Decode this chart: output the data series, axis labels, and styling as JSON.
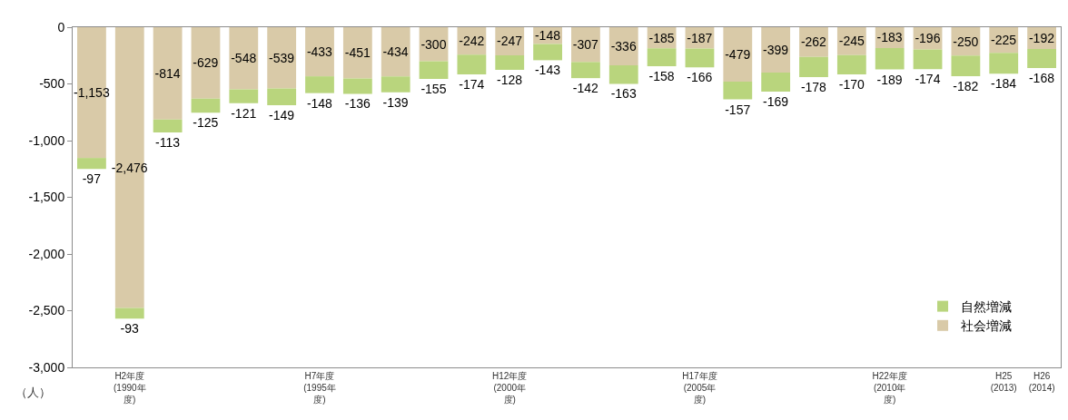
{
  "chart_data": {
    "type": "bar",
    "stacked": true,
    "categories": [
      null,
      "H2年度 (1990年度)",
      null,
      null,
      null,
      null,
      "H7年度 (1995年度)",
      null,
      null,
      null,
      null,
      "H12年度 (2000年度)",
      null,
      null,
      null,
      null,
      "H17年度 (2005年度)",
      null,
      null,
      null,
      null,
      "H22年度 (2010年度)",
      null,
      null,
      "H25 (2013)",
      "H26 (2014)"
    ],
    "series": [
      {
        "name": "社会増減",
        "color": "#d9caa8",
        "values": [
          -1153,
          -2476,
          -814,
          -629,
          -548,
          -539,
          -433,
          -451,
          -434,
          -300,
          -242,
          -247,
          -148,
          -307,
          -336,
          -185,
          -187,
          -479,
          -399,
          -262,
          -245,
          -183,
          -196,
          -250,
          -225,
          -192
        ],
        "value_labels": [
          "-1,153",
          "-2,476",
          "-814",
          "-629",
          "-548",
          "-539",
          "-433",
          "-451",
          "-434",
          "-300",
          "-242",
          "-247",
          "-148",
          "-307",
          "-336",
          "-185",
          "-187",
          "-479",
          "-399",
          "-262",
          "-245",
          "-183",
          "-196",
          "-250",
          "-225",
          "-192"
        ]
      },
      {
        "name": "自然増減",
        "color": "#b9d57d",
        "values": [
          -97,
          -93,
          -113,
          -125,
          -121,
          -149,
          -148,
          -136,
          -139,
          -155,
          -174,
          -128,
          -143,
          -142,
          -163,
          -158,
          -166,
          -157,
          -169,
          -178,
          -170,
          -189,
          -174,
          -182,
          -184,
          -168
        ],
        "value_labels": [
          "-97",
          "-93",
          "-113",
          "-125",
          "-121",
          "-149",
          "-148",
          "-136",
          "-139",
          "-155",
          "-174",
          "-128",
          "-143",
          "-142",
          "-163",
          "-158",
          "-166",
          "-157",
          "-169",
          "-178",
          "-170",
          "-189",
          "-174",
          "-182",
          "-184",
          "-168"
        ]
      }
    ],
    "ylim": [
      -3000,
      0
    ],
    "yticks": [
      0,
      -500,
      {
        "value": -1000,
        "label": "-1,000"
      },
      {
        "value": -1500,
        "label": "-1,500"
      },
      {
        "value": -2000,
        "label": "-2,000"
      },
      {
        "value": -2500,
        "label": "-2,500"
      },
      {
        "value": -3000,
        "label": "-3,000"
      }
    ],
    "ylabel": "（人）",
    "legend": "bottom right"
  }
}
